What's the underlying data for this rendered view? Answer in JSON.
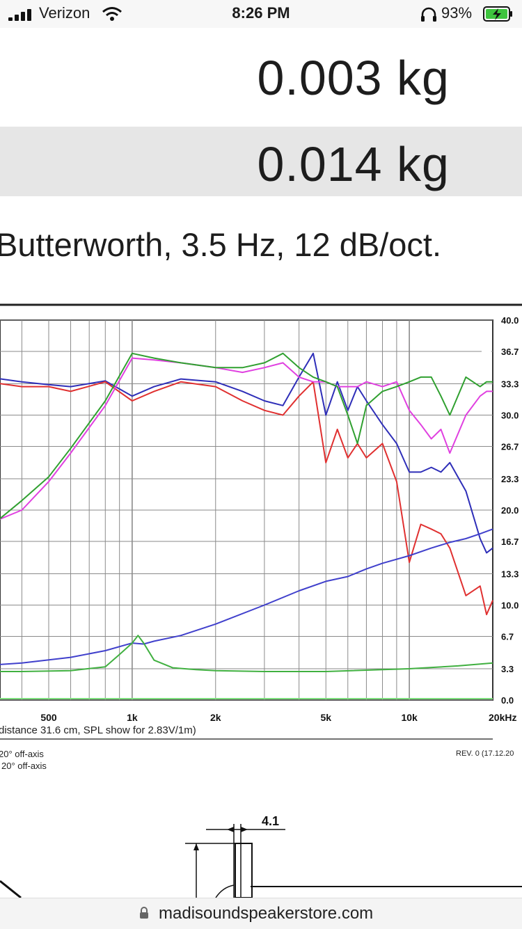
{
  "status_bar": {
    "carrier": "Verizon",
    "time": "8:26 PM",
    "battery_percent": "93%",
    "icons": [
      "signal-icon",
      "wifi-icon",
      "headphones-icon",
      "battery-charging-icon"
    ]
  },
  "specs": {
    "row1_value": "0.003 kg",
    "row2_value": "0.014 kg",
    "filter_text": "Butterworth, 3.5 Hz, 12 dB/oct."
  },
  "figure": {
    "caption": "distance 31.6 cm, SPL show for 2.83V/1m)",
    "legend_line1": "20° off-axis",
    "legend_line2": "20° off-axis",
    "revision": "REV. 0 (17.12.20",
    "drawing_dimension": "4.1"
  },
  "chart_data": {
    "type": "line",
    "x_scale": "log",
    "x_ticks": [
      {
        "label": "500",
        "value": 500
      },
      {
        "label": "1k",
        "value": 1000
      },
      {
        "label": "2k",
        "value": 2000
      },
      {
        "label": "5k",
        "value": 5000
      },
      {
        "label": "10k",
        "value": 10000
      },
      {
        "label": "20kHz",
        "value": 20000
      }
    ],
    "y_ticks": [
      "40.0",
      "36.7",
      "33.3",
      "30.0",
      "26.7",
      "23.3",
      "20.0",
      "16.7",
      "13.3",
      "10.0",
      "6.7",
      "3.3",
      "0.0"
    ],
    "ylim": [
      0,
      40
    ],
    "grid": true,
    "series": [
      {
        "color": "#2e2eb8",
        "x": [
          250,
          300,
          400,
          500,
          600,
          800,
          1000,
          1200,
          1500,
          2000,
          2500,
          3000,
          3500,
          4000,
          4500,
          5000,
          5500,
          6000,
          6500,
          7000,
          8000,
          9000,
          10000,
          11000,
          12000,
          13000,
          14000,
          16000,
          18000,
          19000,
          20000
        ],
        "y": [
          35.5,
          34.0,
          33.5,
          33.2,
          33.0,
          33.6,
          32.0,
          33.0,
          33.8,
          33.5,
          32.5,
          31.5,
          31.0,
          34.0,
          36.5,
          30.0,
          33.5,
          30.5,
          33.0,
          31.5,
          29.0,
          27.0,
          24.0,
          24.0,
          24.5,
          24.0,
          25.0,
          22.0,
          17.0,
          15.5,
          16.0
        ]
      },
      {
        "color": "#e03030",
        "x": [
          250,
          300,
          400,
          500,
          600,
          800,
          1000,
          1200,
          1500,
          2000,
          2500,
          3000,
          3500,
          4000,
          4500,
          5000,
          5500,
          6000,
          6500,
          7000,
          8000,
          9000,
          10000,
          11000,
          12000,
          13000,
          14000,
          16000,
          18000,
          19000,
          20000
        ],
        "y": [
          35.0,
          33.5,
          33.0,
          33.0,
          32.5,
          33.5,
          31.5,
          32.5,
          33.5,
          33.0,
          31.5,
          30.5,
          30.0,
          32.0,
          33.5,
          25.0,
          28.5,
          25.5,
          27.0,
          25.5,
          27.0,
          23.0,
          14.5,
          18.5,
          18.0,
          17.5,
          16.0,
          11.0,
          12.0,
          9.0,
          10.5
        ]
      },
      {
        "color": "#e040e0",
        "x": [
          250,
          300,
          400,
          500,
          600,
          800,
          1000,
          1200,
          1500,
          2000,
          2500,
          3000,
          3500,
          4000,
          4500,
          5000,
          5500,
          6000,
          6500,
          7000,
          8000,
          9000,
          10000,
          11000,
          12000,
          13000,
          14000,
          16000,
          18000,
          19000,
          20000
        ],
        "y": [
          18.0,
          18.5,
          20.0,
          23.0,
          26.0,
          31.0,
          36.0,
          35.8,
          35.5,
          35.0,
          34.5,
          35.0,
          35.5,
          34.0,
          33.5,
          33.5,
          33.0,
          33.0,
          33.0,
          33.5,
          33.0,
          33.5,
          30.5,
          29.0,
          27.5,
          28.5,
          26.0,
          30.0,
          32.0,
          32.5,
          32.5
        ]
      },
      {
        "color": "#30a030",
        "x": [
          250,
          300,
          400,
          500,
          600,
          800,
          1000,
          1200,
          1500,
          2000,
          2500,
          3000,
          3500,
          4000,
          4500,
          5000,
          5500,
          6000,
          6500,
          7000,
          8000,
          9000,
          10000,
          11000,
          12000,
          13000,
          14000,
          16000,
          18000,
          19000,
          20000
        ],
        "y": [
          18.5,
          18.0,
          21.0,
          23.5,
          26.5,
          31.5,
          36.5,
          36.0,
          35.5,
          35.0,
          35.0,
          35.5,
          36.5,
          35.0,
          34.0,
          33.5,
          33.0,
          30.0,
          27.0,
          31.0,
          32.5,
          33.0,
          33.5,
          34.0,
          34.0,
          32.0,
          30.0,
          34.0,
          33.0,
          33.5,
          33.5
        ]
      },
      {
        "color": "#4040cc",
        "x": [
          250,
          400,
          600,
          800,
          1000,
          1100,
          1200,
          1500,
          2000,
          3000,
          4000,
          5000,
          6000,
          7000,
          8000,
          10000,
          12000,
          14000,
          16000,
          18000,
          20000
        ],
        "y": [
          3.5,
          3.9,
          4.5,
          5.2,
          6.0,
          5.9,
          6.2,
          6.8,
          8.0,
          10.0,
          11.5,
          12.5,
          13.0,
          13.8,
          14.4,
          15.2,
          16.0,
          16.6,
          17.0,
          17.5,
          18.0
        ]
      },
      {
        "color": "#40b040",
        "x": [
          250,
          400,
          600,
          800,
          900,
          1000,
          1050,
          1100,
          1200,
          1400,
          1700,
          2000,
          3000,
          5000,
          10000,
          15000,
          20000
        ],
        "y": [
          3.0,
          3.0,
          3.1,
          3.5,
          4.8,
          6.0,
          6.8,
          6.0,
          4.2,
          3.4,
          3.2,
          3.1,
          3.0,
          3.0,
          3.3,
          3.6,
          3.9
        ]
      }
    ]
  }
}
